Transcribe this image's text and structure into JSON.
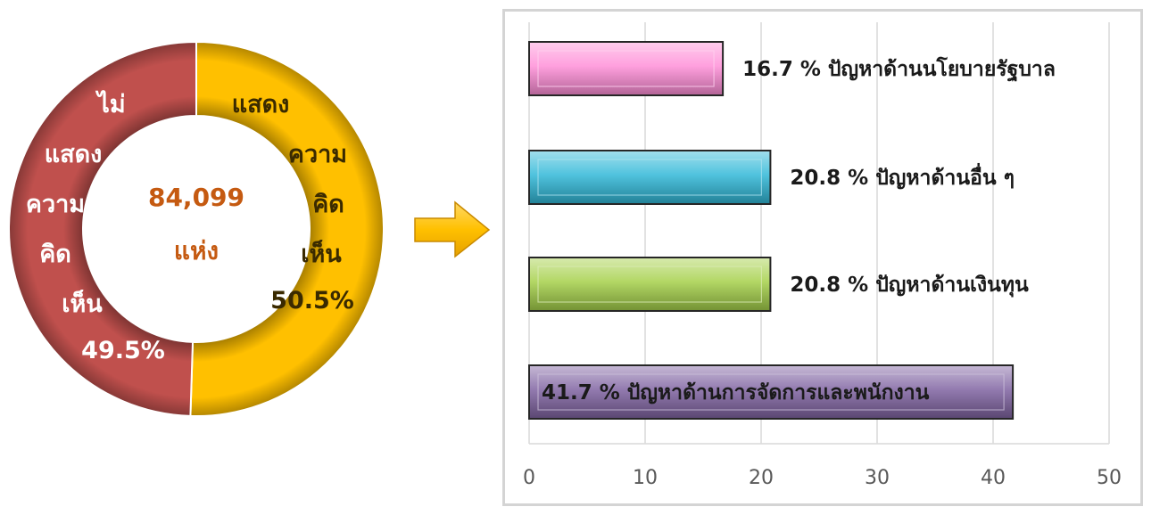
{
  "chart_data": [
    {
      "type": "pie",
      "variant": "donut",
      "center_text": [
        "84,099",
        "แห่ง"
      ],
      "slices": [
        {
          "label_lines": [
            "แสดง",
            "ความ",
            "คิด",
            "เห็น"
          ],
          "percent_label": "50.5%",
          "value": 50.5,
          "color": "#ffc000"
        },
        {
          "label_lines": [
            "ไม่",
            "แสดง",
            "ความ",
            "คิด",
            "เห็น"
          ],
          "percent_label": "49.5%",
          "value": 49.5,
          "color": "#c0504d"
        }
      ],
      "center_text_color": "#c55a11"
    },
    {
      "type": "bar",
      "orientation": "horizontal",
      "categories": [
        "16.7 % ปัญหาด้านนโยบายรัฐบาล",
        "20.8 % ปัญหาด้านอื่น ๆ",
        "20.8 % ปัญหาด้านเงินทุน",
        "41.7 % ปัญหาด้านการจัดการและพนักงาน"
      ],
      "values": [
        16.7,
        20.8,
        20.8,
        41.7
      ],
      "colors": [
        "#ff8fd8",
        "#31b8d8",
        "#a5d04a",
        "#8064a2"
      ],
      "xlim": [
        0,
        50
      ],
      "xticks": [
        "0",
        "10",
        "20",
        "30",
        "40",
        "50"
      ],
      "grid": true,
      "legend": "none"
    }
  ],
  "icons": {
    "arrow": "right-arrow-icon",
    "arrow_color": "#ffc000"
  }
}
